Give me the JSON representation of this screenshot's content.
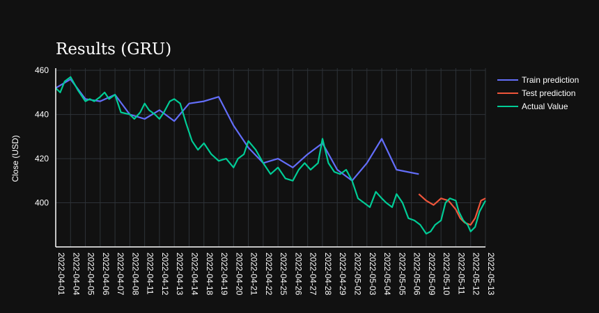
{
  "chart_data": {
    "type": "line",
    "title": "Results (GRU)",
    "xlabel": "",
    "ylabel": "Close (USD)",
    "ylim": [
      380,
      461
    ],
    "yticks": [
      400,
      420,
      440,
      460
    ],
    "x_tick_labels": [
      "2022-04-01",
      "2022-04-04",
      "2022-04-05",
      "2022-04-06",
      "2022-04-07",
      "2022-04-08",
      "2022-04-11",
      "2022-04-12",
      "2022-04-13",
      "2022-04-14",
      "2022-04-18",
      "2022-04-19",
      "2022-04-20",
      "2022-04-21",
      "2022-04-22",
      "2022-04-25",
      "2022-04-26",
      "2022-04-27",
      "2022-04-28",
      "2022-04-29",
      "2022-05-02",
      "2022-05-03",
      "2022-05-04",
      "2022-05-05",
      "2022-05-06",
      "2022-05-09",
      "2022-05-10",
      "2022-05-11",
      "2022-05-12",
      "2022-05-13"
    ],
    "grid": true,
    "legend_position": "top-right",
    "series": [
      {
        "name": "Train prediction",
        "color": "#636efa",
        "x": [
          0,
          1,
          2,
          3,
          4,
          5,
          6,
          7,
          8,
          9,
          10,
          11,
          12,
          13,
          14,
          15,
          16,
          17,
          18,
          19,
          20,
          21,
          22,
          23,
          24.5
        ],
        "y": [
          452,
          456,
          447,
          446,
          449,
          440,
          438,
          442,
          437,
          445,
          446,
          448,
          435,
          425,
          418,
          420,
          416,
          422,
          427,
          415,
          410,
          418,
          429,
          415,
          413
        ]
      },
      {
        "name": "Test prediction",
        "color": "#ef553b",
        "x": [
          24.5,
          25,
          25.5,
          26,
          26.5,
          27,
          27.3,
          27.6,
          28,
          28.3,
          28.7,
          29
        ],
        "y": [
          404,
          401,
          399,
          402,
          401,
          397,
          393,
          391,
          390,
          393,
          401,
          402
        ]
      },
      {
        "name": "Actual Value",
        "color": "#00cc96",
        "x": [
          0,
          0.3,
          0.6,
          1,
          1.5,
          2,
          2.3,
          2.6,
          3,
          3.3,
          3.6,
          4,
          4.4,
          5,
          5.3,
          5.7,
          6,
          6.3,
          6.7,
          7,
          7.3,
          7.7,
          8,
          8.4,
          8.8,
          9.2,
          9.6,
          10,
          10.5,
          11,
          11.5,
          12,
          12.3,
          12.7,
          13,
          13.5,
          14,
          14.5,
          15,
          15.5,
          16,
          16.4,
          16.8,
          17.2,
          17.7,
          18,
          18.4,
          18.8,
          19.2,
          19.6,
          20,
          20.4,
          20.8,
          21.2,
          21.6,
          22,
          22.3,
          22.7,
          23,
          23.4,
          23.8,
          24.2,
          24.6,
          25,
          25.3,
          25.6,
          26,
          26.3,
          26.6,
          27,
          27.2,
          27.5,
          27.8,
          28,
          28.3,
          28.6,
          29
        ],
        "y": [
          452,
          450,
          455,
          457,
          451,
          446,
          447,
          446,
          448,
          450,
          447,
          449,
          441,
          440,
          438,
          441,
          445,
          442,
          440,
          438,
          441,
          446,
          447,
          445,
          436,
          428,
          424,
          427,
          422,
          419,
          420,
          416,
          420,
          422,
          428,
          424,
          418,
          413,
          416,
          411,
          410,
          415,
          418,
          415,
          418,
          429,
          418,
          414,
          413,
          415,
          410,
          402,
          400,
          398,
          405,
          402,
          400,
          398,
          404,
          400,
          393,
          392,
          390,
          386,
          387,
          390,
          392,
          400,
          402,
          401,
          396,
          392,
          390,
          387,
          389,
          396,
          401
        ]
      }
    ]
  }
}
